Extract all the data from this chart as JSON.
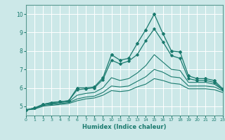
{
  "xlabel": "Humidex (Indice chaleur)",
  "xlim": [
    0,
    23
  ],
  "ylim": [
    4.5,
    10.5
  ],
  "yticks": [
    5,
    6,
    7,
    8,
    9,
    10
  ],
  "xticks": [
    0,
    1,
    2,
    3,
    4,
    5,
    6,
    7,
    8,
    9,
    10,
    11,
    12,
    13,
    14,
    15,
    16,
    17,
    18,
    19,
    20,
    21,
    22,
    23
  ],
  "bg_color": "#cce8e8",
  "line_color": "#1a7a6e",
  "grid_color": "#b0d4d4",
  "lines": {
    "line1": [
      4.8,
      4.9,
      5.1,
      5.2,
      5.25,
      5.3,
      6.0,
      6.0,
      6.05,
      6.55,
      7.8,
      7.5,
      7.6,
      8.4,
      9.15,
      10.0,
      8.95,
      8.0,
      7.95,
      6.65,
      6.5,
      6.5,
      6.4,
      5.95
    ],
    "line2": [
      4.8,
      4.9,
      5.1,
      5.2,
      5.25,
      5.3,
      5.9,
      5.95,
      6.0,
      6.45,
      7.5,
      7.3,
      7.45,
      7.8,
      8.55,
      9.2,
      8.5,
      7.75,
      7.6,
      6.5,
      6.4,
      6.4,
      6.3,
      5.9
    ],
    "line3": [
      4.8,
      4.9,
      5.1,
      5.15,
      5.2,
      5.25,
      5.6,
      5.7,
      5.75,
      6.0,
      6.55,
      6.4,
      6.5,
      6.8,
      7.2,
      7.8,
      7.4,
      7.0,
      6.95,
      6.3,
      6.3,
      6.3,
      6.2,
      5.9
    ],
    "line4": [
      4.8,
      4.85,
      5.05,
      5.1,
      5.15,
      5.2,
      5.4,
      5.5,
      5.55,
      5.75,
      6.1,
      6.05,
      6.1,
      6.35,
      6.6,
      7.0,
      6.85,
      6.6,
      6.55,
      6.1,
      6.1,
      6.1,
      6.05,
      5.85
    ],
    "line5": [
      4.8,
      4.85,
      5.0,
      5.05,
      5.1,
      5.15,
      5.3,
      5.4,
      5.45,
      5.6,
      5.85,
      5.8,
      5.85,
      6.05,
      6.2,
      6.5,
      6.4,
      6.25,
      6.2,
      5.95,
      5.95,
      5.95,
      5.9,
      5.75
    ]
  }
}
